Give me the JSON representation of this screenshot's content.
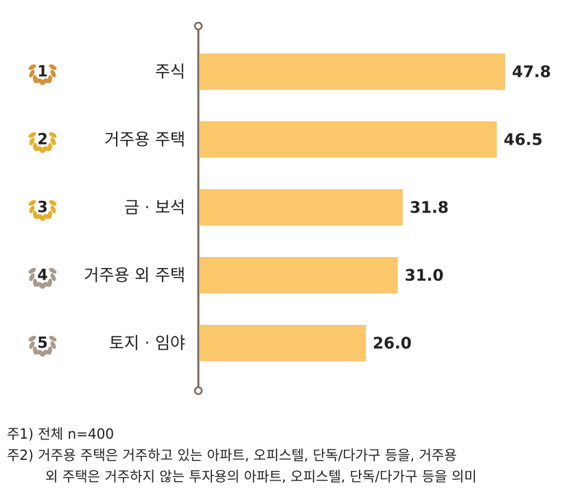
{
  "chart_data": {
    "type": "bar",
    "orientation": "horizontal",
    "categories": [
      "주식",
      "거주용 주택",
      "금 · 보석",
      "거주용 외 주택",
      "토지 · 임야"
    ],
    "values": [
      47.8,
      46.5,
      31.8,
      31.0,
      26.0
    ],
    "value_labels": [
      "47.8",
      "46.5",
      "31.8",
      "31.0",
      "26.0"
    ],
    "ranks": [
      "1",
      "2",
      "3",
      "4",
      "5"
    ],
    "xlim": [
      0,
      55
    ],
    "grid": false,
    "legend": "none"
  },
  "colors": {
    "bar": "#FBC76B",
    "axis": "#7A6A5E",
    "rank_icons": [
      "#D4913C",
      "#E5AF2C",
      "#E5AF2C",
      "#A89A8C",
      "#A89A8C"
    ]
  },
  "icons": {
    "rank": "laurel-wreath-icon"
  },
  "notes": {
    "line1": "주1) 전체 n=400",
    "line2": "주2) 거주용 주택은 거주하고 있는 아파트, 오피스텔, 단독/다가구 등을, 거주용",
    "line3": "외 주택은 거주하지 않는 투자용의 아파트, 오피스텔, 단독/다가구 등을 의미"
  }
}
